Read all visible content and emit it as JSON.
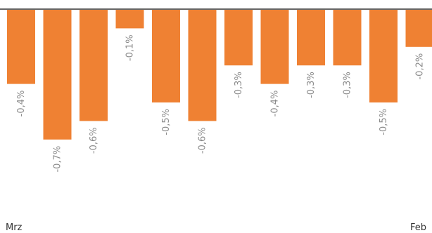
{
  "chart_data": {
    "type": "bar",
    "title": "",
    "xlabel": "",
    "ylabel": "",
    "categories": [
      "Mrz",
      "",
      "",
      "",
      "",
      "",
      "",
      "",
      "",
      "",
      "",
      "Feb"
    ],
    "values": [
      -0.4,
      -0.7,
      -0.6,
      -0.1,
      -0.5,
      -0.6,
      -0.3,
      -0.4,
      -0.3,
      -0.3,
      -0.5,
      -0.2
    ],
    "data_labels": [
      "-0,4%",
      "-0,7%",
      "-0,6%",
      "-0,1%",
      "-0,5%",
      "-0,6%",
      "-0,3%",
      "-0,4%",
      "-0,3%",
      "-0,3%",
      "-0,5%",
      "-0,2%"
    ],
    "ylim": [
      -0.7,
      0
    ],
    "grid": false,
    "legend": "none",
    "colors": {
      "bar": "#ef8133",
      "baseline": "#666666",
      "label": "#8a8a8a",
      "axis_text": "#333333"
    }
  }
}
